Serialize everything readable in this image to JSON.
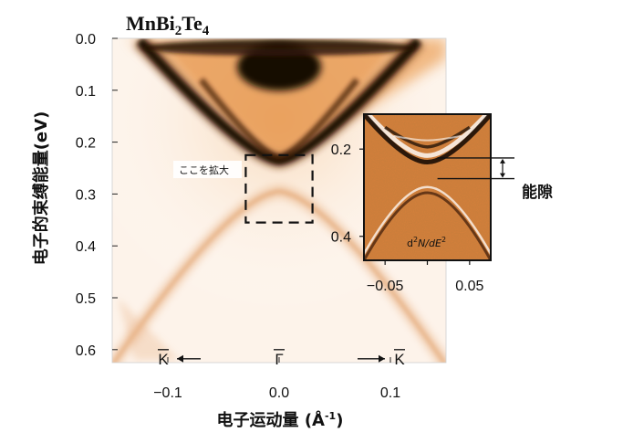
{
  "chart_data": [
    {
      "type": "heatmap",
      "title": "MnBi",
      "title_sub1": "2",
      "title_mid": "Te",
      "title_sub2": "4",
      "xlabel": "电子运动量 (Å",
      "xlabel_sup": "-1",
      "xlabel_end": ")",
      "ylabel": "电子的束缚能量(eV)",
      "xlim": [
        -0.15,
        0.15
      ],
      "ylim": [
        0.0,
        0.625
      ],
      "y_inverted": true,
      "x_ticks": [
        {
          "value": -0.1,
          "label": "−0.1"
        },
        {
          "value": 0.0,
          "label": "0.0"
        },
        {
          "value": 0.1,
          "label": "0.1"
        }
      ],
      "y_ticks": [
        {
          "value": 0.0,
          "label": "0.0"
        },
        {
          "value": 0.1,
          "label": "0.1"
        },
        {
          "value": 0.2,
          "label": "0.2"
        },
        {
          "value": 0.3,
          "label": "0.3"
        },
        {
          "value": 0.4,
          "label": "0.4"
        },
        {
          "value": 0.5,
          "label": "0.5"
        },
        {
          "value": 0.6,
          "label": "0.6"
        }
      ],
      "k_points": [
        {
          "value": -0.1,
          "label": "K",
          "arrow": "left"
        },
        {
          "value": 0.0,
          "label": "Γ"
        },
        {
          "value": 0.1,
          "label": "K",
          "arrow": "right"
        }
      ],
      "zoom_box": {
        "x": [
          -0.03,
          0.03
        ],
        "y": [
          0.225,
          0.355
        ],
        "label": "ここを拡大"
      },
      "colormap": {
        "low": "#ffffff",
        "mid": "#e7892e",
        "high": "#140a04"
      },
      "bands": [
        {
          "name": "upper_band",
          "vertex_e": 0.235,
          "vertex_k": 0.0
        },
        {
          "name": "lower_band",
          "vertex_e": 0.295,
          "vertex_k": 0.0
        }
      ]
    },
    {
      "type": "heatmap",
      "inset": true,
      "label": "d",
      "label_sup1": "2",
      "label_mid": "N/d",
      "label_E": "E",
      "label_sup2": "2",
      "xlim": [
        -0.075,
        0.075
      ],
      "ylim": [
        0.12,
        0.455
      ],
      "y_inverted": true,
      "x_ticks": [
        {
          "value": -0.05,
          "label": "−0.05"
        },
        {
          "value": 0.05,
          "label": "0.05"
        }
      ],
      "y_ticks": [
        {
          "value": 0.2,
          "label": "0.2"
        },
        {
          "value": 0.4,
          "label": "0.4"
        }
      ],
      "gap": {
        "from": 0.235,
        "to": 0.295,
        "label": "能隙"
      },
      "background_color": "#d7803a"
    }
  ]
}
